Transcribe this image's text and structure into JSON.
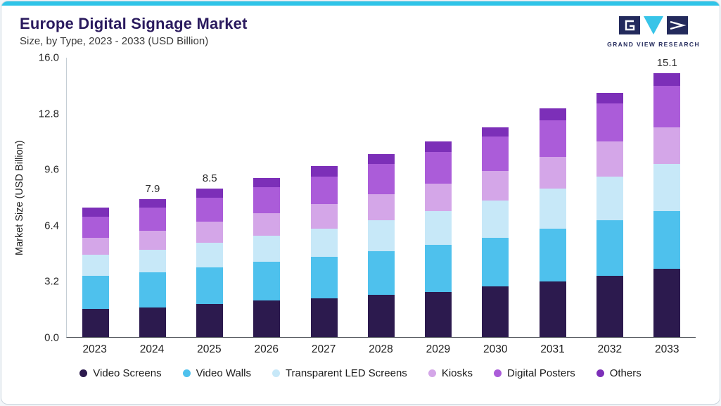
{
  "colors": {
    "accent": "#2fc4e8",
    "title": "#2a1a5e",
    "logo_navy": "#232a5c"
  },
  "header": {
    "title": "Europe Digital Signage Market",
    "subtitle": "Size, by Type, 2023 - 2033 (USD Billion)",
    "logo_text": "GRAND VIEW RESEARCH"
  },
  "chart_data": {
    "type": "bar",
    "stacked": true,
    "title": "Europe Digital Signage Market Size, by Type, 2023 - 2033 (USD Billion)",
    "xlabel": "",
    "ylabel": "Market Size (USD Billion)",
    "ylim": [
      0,
      16
    ],
    "yticks": [
      0.0,
      3.2,
      6.4,
      9.6,
      12.8,
      16.0
    ],
    "grid": false,
    "legend_position": "bottom",
    "categories": [
      "2023",
      "2024",
      "2025",
      "2026",
      "2027",
      "2028",
      "2029",
      "2030",
      "2031",
      "2032",
      "2033"
    ],
    "series": [
      {
        "name": "Video Screens",
        "color": "#2c1a4e",
        "values": [
          1.6,
          1.7,
          1.9,
          2.1,
          2.2,
          2.4,
          2.6,
          2.9,
          3.2,
          3.5,
          3.9
        ]
      },
      {
        "name": "Video Walls",
        "color": "#4ec1ed",
        "values": [
          1.9,
          2.0,
          2.1,
          2.2,
          2.4,
          2.5,
          2.7,
          2.8,
          3.0,
          3.2,
          3.3
        ]
      },
      {
        "name": "Transparent LED Screens",
        "color": "#c7e8f8",
        "values": [
          1.2,
          1.3,
          1.4,
          1.5,
          1.6,
          1.8,
          1.9,
          2.1,
          2.3,
          2.5,
          2.7
        ]
      },
      {
        "name": "Kiosks",
        "color": "#d4a6e8",
        "values": [
          1.0,
          1.1,
          1.2,
          1.3,
          1.4,
          1.5,
          1.6,
          1.7,
          1.8,
          2.0,
          2.1
        ]
      },
      {
        "name": "Digital Posters",
        "color": "#ab5cd9",
        "values": [
          1.2,
          1.3,
          1.4,
          1.5,
          1.6,
          1.7,
          1.8,
          2.0,
          2.1,
          2.2,
          2.4
        ]
      },
      {
        "name": "Others",
        "color": "#7c2fb8",
        "values": [
          0.5,
          0.5,
          0.5,
          0.5,
          0.6,
          0.6,
          0.6,
          0.5,
          0.7,
          0.6,
          0.7
        ]
      }
    ],
    "totals": [
      7.4,
      7.9,
      8.5,
      9.1,
      9.8,
      10.5,
      11.2,
      12.0,
      13.1,
      14.0,
      15.1
    ],
    "total_labels": {
      "2024": "7.9",
      "2025": "8.5",
      "2033": "15.1"
    }
  }
}
